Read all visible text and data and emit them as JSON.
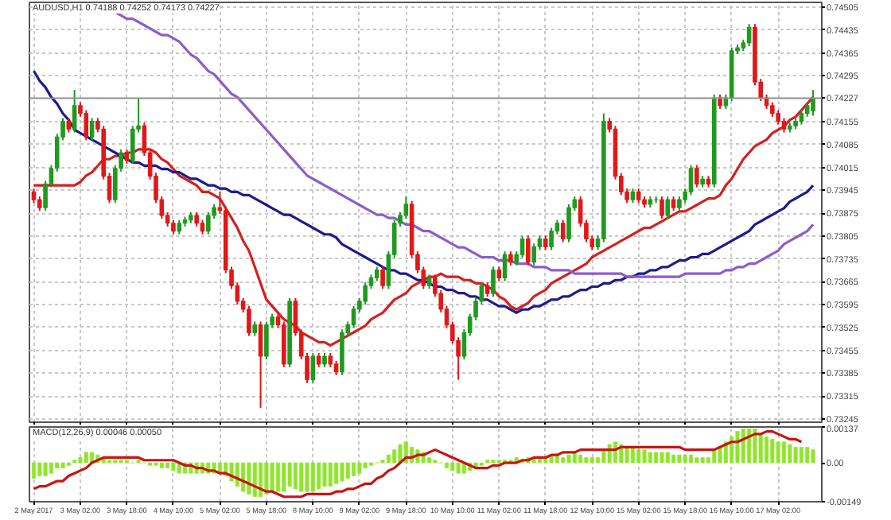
{
  "chart_data": [
    {
      "type": "candlestick",
      "title": "AUDUSD,H1 0.74188 0.74252 0.74173 0.74227",
      "categories": [
        null,
        null,
        null,
        null,
        null,
        null,
        null,
        null,
        null,
        null,
        null,
        null,
        null,
        null,
        null,
        null,
        null,
        null,
        null,
        null,
        null,
        null,
        null,
        null,
        null,
        null,
        null,
        null,
        null,
        null,
        null,
        null,
        null,
        null,
        null,
        null,
        null,
        null,
        null,
        null,
        null,
        null,
        null,
        null,
        null,
        null,
        null,
        null,
        null,
        null,
        null,
        null,
        null,
        null,
        null,
        null,
        null,
        null,
        null,
        null,
        null,
        null,
        null,
        null,
        null,
        null,
        null,
        null,
        null,
        null,
        null,
        null,
        null,
        null,
        null,
        null,
        null,
        null,
        null,
        null,
        null,
        null,
        null,
        null,
        null,
        null,
        null,
        null,
        null,
        null,
        null,
        null,
        null,
        null,
        null,
        null,
        null,
        null,
        null,
        null,
        null,
        null,
        null,
        null,
        null,
        null,
        null,
        null,
        null,
        null,
        null,
        null,
        null,
        null,
        null,
        null,
        null,
        null,
        null,
        null,
        null,
        null,
        null,
        null,
        null,
        null,
        null,
        null,
        null,
        null,
        null,
        null,
        null,
        null,
        null
      ],
      "ohlc": [
        [
          0.7394,
          0.7395,
          0.73906,
          0.73916
        ],
        [
          0.73916,
          0.73926,
          0.73882,
          0.73892
        ],
        [
          0.73892,
          0.73974,
          0.73882,
          0.73964
        ],
        [
          0.73964,
          0.74022,
          0.73954,
          0.74012
        ],
        [
          0.74012,
          0.74118,
          0.74002,
          0.74108
        ],
        [
          0.74108,
          0.74166,
          0.74098,
          0.74156
        ],
        [
          0.74156,
          0.74166,
          0.74122,
          0.74132
        ],
        [
          0.74132,
          0.74252,
          0.74122,
          0.74204
        ],
        [
          0.74204,
          0.74214,
          0.7417,
          0.7418
        ],
        [
          0.7418,
          0.7419,
          0.74098,
          0.74108
        ],
        [
          0.74108,
          0.74166,
          0.74098,
          0.74156
        ],
        [
          0.74156,
          0.74166,
          0.74122,
          0.74132
        ],
        [
          0.74132,
          0.74142,
          0.73978,
          0.73988
        ],
        [
          0.73988,
          0.73998,
          0.73906,
          0.73916
        ],
        [
          0.73916,
          0.74022,
          0.73906,
          0.74012
        ],
        [
          0.74012,
          0.7407,
          0.74002,
          0.7406
        ],
        [
          0.7406,
          0.7407,
          0.74026,
          0.74036
        ],
        [
          0.74036,
          0.74142,
          0.74026,
          0.74132
        ],
        [
          0.74132,
          0.74228,
          0.74122,
          0.74142
        ],
        [
          0.74142,
          0.74152,
          0.7405,
          0.7406
        ],
        [
          0.7406,
          0.7407,
          0.73978,
          0.73988
        ],
        [
          0.73988,
          0.73998,
          0.73906,
          0.73916
        ],
        [
          0.73916,
          0.73926,
          0.73858,
          0.73868
        ],
        [
          0.73868,
          0.73878,
          0.73834,
          0.73844
        ],
        [
          0.73844,
          0.73854,
          0.7381,
          0.7382
        ],
        [
          0.7382,
          0.73854,
          0.7381,
          0.73844
        ],
        [
          0.73844,
          0.73864,
          0.73834,
          0.73854
        ],
        [
          0.73854,
          0.73878,
          0.73844,
          0.73868
        ],
        [
          0.73868,
          0.73878,
          0.73834,
          0.73844
        ],
        [
          0.73844,
          0.73854,
          0.7381,
          0.7382
        ],
        [
          0.7382,
          0.73878,
          0.7381,
          0.73868
        ],
        [
          0.73868,
          0.73902,
          0.73858,
          0.73892
        ],
        [
          0.73892,
          0.7394,
          0.73873,
          0.73883
        ],
        [
          0.73883,
          0.73893,
          0.73691,
          0.73701
        ],
        [
          0.73701,
          0.73711,
          0.73643,
          0.73653
        ],
        [
          0.73653,
          0.73663,
          0.73595,
          0.73605
        ],
        [
          0.73605,
          0.73615,
          0.73571,
          0.73581
        ],
        [
          0.73581,
          0.73591,
          0.73499,
          0.73509
        ],
        [
          0.73509,
          0.73543,
          0.73499,
          0.73533
        ],
        [
          0.73533,
          0.73543,
          0.73279,
          0.73437
        ],
        [
          0.73437,
          0.73543,
          0.73427,
          0.73533
        ],
        [
          0.73533,
          0.73567,
          0.73523,
          0.73557
        ],
        [
          0.73557,
          0.73567,
          0.73523,
          0.73533
        ],
        [
          0.73533,
          0.73543,
          0.73403,
          0.73413
        ],
        [
          0.73413,
          0.73615,
          0.73403,
          0.73605
        ],
        [
          0.73605,
          0.73615,
          0.73499,
          0.73509
        ],
        [
          0.73509,
          0.73519,
          0.73427,
          0.73437
        ],
        [
          0.73437,
          0.73447,
          0.73355,
          0.73365
        ],
        [
          0.73365,
          0.73447,
          0.73355,
          0.73437
        ],
        [
          0.73437,
          0.73447,
          0.73403,
          0.73413
        ],
        [
          0.73413,
          0.73447,
          0.73403,
          0.73437
        ],
        [
          0.73437,
          0.73447,
          0.73403,
          0.73413
        ],
        [
          0.73413,
          0.73423,
          0.73379,
          0.73389
        ],
        [
          0.73389,
          0.73519,
          0.73379,
          0.73509
        ],
        [
          0.73509,
          0.73543,
          0.73499,
          0.73533
        ],
        [
          0.73533,
          0.73591,
          0.73523,
          0.73581
        ],
        [
          0.73581,
          0.73615,
          0.73571,
          0.73605
        ],
        [
          0.73605,
          0.73663,
          0.73595,
          0.73653
        ],
        [
          0.73653,
          0.73687,
          0.73643,
          0.73677
        ],
        [
          0.73677,
          0.73711,
          0.73667,
          0.73701
        ],
        [
          0.73701,
          0.73711,
          0.73643,
          0.73653
        ],
        [
          0.73653,
          0.73758,
          0.73643,
          0.73748
        ],
        [
          0.73748,
          0.73854,
          0.73738,
          0.73844
        ],
        [
          0.73844,
          0.73878,
          0.73834,
          0.73868
        ],
        [
          0.73868,
          0.73926,
          0.73858,
          0.73902
        ],
        [
          0.73902,
          0.73912,
          0.73738,
          0.73748
        ],
        [
          0.73748,
          0.73758,
          0.73691,
          0.73701
        ],
        [
          0.73701,
          0.73711,
          0.73643,
          0.73653
        ],
        [
          0.73653,
          0.73687,
          0.73643,
          0.73677
        ],
        [
          0.73677,
          0.73687,
          0.73619,
          0.73629
        ],
        [
          0.73629,
          0.73639,
          0.73571,
          0.73581
        ],
        [
          0.73581,
          0.73591,
          0.73523,
          0.73533
        ],
        [
          0.73533,
          0.73543,
          0.73475,
          0.73485
        ],
        [
          0.73485,
          0.73495,
          0.73365,
          0.73437
        ],
        [
          0.73437,
          0.73519,
          0.73427,
          0.73509
        ],
        [
          0.73509,
          0.73567,
          0.73499,
          0.73557
        ],
        [
          0.73557,
          0.73615,
          0.73547,
          0.73605
        ],
        [
          0.73605,
          0.73663,
          0.73595,
          0.73653
        ],
        [
          0.73653,
          0.73663,
          0.73619,
          0.73629
        ],
        [
          0.73629,
          0.73711,
          0.73619,
          0.73701
        ],
        [
          0.73701,
          0.73711,
          0.73667,
          0.73677
        ],
        [
          0.73677,
          0.73758,
          0.73667,
          0.73748
        ],
        [
          0.73748,
          0.73758,
          0.73715,
          0.73725
        ],
        [
          0.73725,
          0.73758,
          0.73715,
          0.73748
        ],
        [
          0.73748,
          0.73806,
          0.73738,
          0.73796
        ],
        [
          0.73796,
          0.73806,
          0.73715,
          0.73725
        ],
        [
          0.73725,
          0.73782,
          0.73715,
          0.73772
        ],
        [
          0.73772,
          0.73806,
          0.73762,
          0.73796
        ],
        [
          0.73796,
          0.73806,
          0.73762,
          0.73772
        ],
        [
          0.73772,
          0.7383,
          0.73762,
          0.7382
        ],
        [
          0.7382,
          0.73854,
          0.7381,
          0.73844
        ],
        [
          0.73844,
          0.73854,
          0.73786,
          0.73796
        ],
        [
          0.73796,
          0.73902,
          0.73786,
          0.73892
        ],
        [
          0.73892,
          0.73926,
          0.73882,
          0.73916
        ],
        [
          0.73916,
          0.73926,
          0.73834,
          0.73844
        ],
        [
          0.73844,
          0.73854,
          0.73786,
          0.73796
        ],
        [
          0.73796,
          0.73806,
          0.73762,
          0.73772
        ],
        [
          0.73772,
          0.73806,
          0.73762,
          0.73796
        ],
        [
          0.73796,
          0.7418,
          0.73786,
          0.74156
        ],
        [
          0.74156,
          0.74166,
          0.74122,
          0.74132
        ],
        [
          0.74132,
          0.74142,
          0.73978,
          0.73988
        ],
        [
          0.73988,
          0.73998,
          0.7393,
          0.7394
        ],
        [
          0.7394,
          0.7395,
          0.73906,
          0.73916
        ],
        [
          0.73916,
          0.7395,
          0.73906,
          0.7394
        ],
        [
          0.7394,
          0.7395,
          0.73906,
          0.73916
        ],
        [
          0.73916,
          0.73926,
          0.73892,
          0.73902
        ],
        [
          0.73902,
          0.73926,
          0.73892,
          0.73916
        ],
        [
          0.73916,
          0.73926,
          0.73906,
          0.73916
        ],
        [
          0.73916,
          0.73926,
          0.73858,
          0.73868
        ],
        [
          0.73868,
          0.73926,
          0.73858,
          0.73916
        ],
        [
          0.73916,
          0.73926,
          0.73882,
          0.73892
        ],
        [
          0.73892,
          0.73926,
          0.73882,
          0.73916
        ],
        [
          0.73916,
          0.7395,
          0.73906,
          0.7394
        ],
        [
          0.7394,
          0.74022,
          0.7393,
          0.74012
        ],
        [
          0.74012,
          0.74022,
          0.73954,
          0.73964
        ],
        [
          0.73964,
          0.73989,
          0.73954,
          0.73979
        ],
        [
          0.73979,
          0.73989,
          0.73954,
          0.73964
        ],
        [
          0.73964,
          0.74238,
          0.73954,
          0.74228
        ],
        [
          0.74228,
          0.74238,
          0.74194,
          0.74204
        ],
        [
          0.74204,
          0.74238,
          0.74194,
          0.74228
        ],
        [
          0.74228,
          0.74382,
          0.74218,
          0.74372
        ],
        [
          0.74372,
          0.74391,
          0.74362,
          0.74381
        ],
        [
          0.74381,
          0.74406,
          0.74371,
          0.74396
        ],
        [
          0.74396,
          0.74454,
          0.74386,
          0.74444
        ],
        [
          0.74444,
          0.74454,
          0.74266,
          0.74276
        ],
        [
          0.74276,
          0.74286,
          0.74218,
          0.74228
        ],
        [
          0.74228,
          0.74238,
          0.74194,
          0.74204
        ],
        [
          0.74204,
          0.74214,
          0.7417,
          0.7418
        ],
        [
          0.7418,
          0.7419,
          0.74146,
          0.74156
        ],
        [
          0.74156,
          0.74166,
          0.74122,
          0.74132
        ],
        [
          0.74132,
          0.74152,
          0.74122,
          0.74142
        ],
        [
          0.74142,
          0.74166,
          0.74132,
          0.74156
        ],
        [
          0.74156,
          0.7419,
          0.74146,
          0.7418
        ],
        [
          0.7418,
          0.74214,
          0.7417,
          0.74204
        ],
        [
          0.74188,
          0.74252,
          0.74173,
          0.74227
        ]
      ],
      "colors": [
        "#e01818",
        "#e01818",
        "#1f9a1f",
        "#1f9a1f",
        "#1f9a1f",
        "#1f9a1f",
        "#e01818",
        "#1f9a1f",
        "#e01818",
        "#e01818",
        "#1f9a1f",
        "#e01818",
        "#e01818",
        "#e01818",
        "#1f9a1f",
        "#1f9a1f",
        "#e01818",
        "#1f9a1f",
        "#1f9a1f",
        "#e01818",
        "#e01818",
        "#e01818",
        "#e01818",
        "#e01818",
        "#e01818",
        "#1f9a1f",
        "#1f9a1f",
        "#1f9a1f",
        "#e01818",
        "#e01818",
        "#1f9a1f",
        "#1f9a1f",
        "#e01818",
        "#e01818",
        "#e01818",
        "#e01818",
        "#e01818",
        "#e01818",
        "#1f9a1f",
        "#e01818",
        "#1f9a1f",
        "#1f9a1f",
        "#e01818",
        "#e01818",
        "#1f9a1f",
        "#e01818",
        "#e01818",
        "#e01818",
        "#1f9a1f",
        "#e01818",
        "#1f9a1f",
        "#e01818",
        "#e01818",
        "#1f9a1f",
        "#1f9a1f",
        "#1f9a1f",
        "#1f9a1f",
        "#1f9a1f",
        "#1f9a1f",
        "#1f9a1f",
        "#e01818",
        "#1f9a1f",
        "#1f9a1f",
        "#1f9a1f",
        "#1f9a1f",
        "#e01818",
        "#e01818",
        "#e01818",
        "#1f9a1f",
        "#e01818",
        "#e01818",
        "#e01818",
        "#e01818",
        "#e01818",
        "#1f9a1f",
        "#1f9a1f",
        "#1f9a1f",
        "#1f9a1f",
        "#e01818",
        "#1f9a1f",
        "#e01818",
        "#1f9a1f",
        "#e01818",
        "#1f9a1f",
        "#1f9a1f",
        "#e01818",
        "#1f9a1f",
        "#1f9a1f",
        "#e01818",
        "#1f9a1f",
        "#1f9a1f",
        "#e01818",
        "#1f9a1f",
        "#1f9a1f",
        "#e01818",
        "#e01818",
        "#e01818",
        "#1f9a1f",
        "#1f9a1f",
        "#e01818",
        "#e01818",
        "#e01818",
        "#e01818",
        "#1f9a1f",
        "#e01818",
        "#e01818",
        "#1f9a1f",
        "#1f9a1f",
        "#e01818",
        "#1f9a1f",
        "#e01818",
        "#1f9a1f",
        "#1f9a1f",
        "#1f9a1f",
        "#e01818",
        "#1f9a1f",
        "#e01818",
        "#1f9a1f",
        "#e01818",
        "#1f9a1f",
        "#1f9a1f",
        "#1f9a1f",
        "#1f9a1f",
        "#1f9a1f",
        "#e01818",
        "#e01818",
        "#e01818",
        "#e01818",
        "#e01818",
        "#e01818",
        "#1f9a1f",
        "#1f9a1f",
        "#1f9a1f",
        "#1f9a1f",
        "#1f9a1f"
      ],
      "series": [
        {
          "type": "line",
          "color": "#d42020",
          "values": [
            0.7396,
            0.7396,
            0.7396,
            0.7396,
            0.7396,
            0.7396,
            0.7396,
            0.7396,
            0.7397,
            0.7399,
            0.74,
            0.7402,
            0.7404,
            0.7404,
            0.7405,
            0.7405,
            0.7406,
            0.7406,
            0.7407,
            0.7407,
            0.7407,
            0.7406,
            0.7404,
            0.7403,
            0.7401,
            0.7399,
            0.7398,
            0.7397,
            0.7396,
            0.7394,
            0.7394,
            0.7393,
            0.7392,
            0.7389,
            0.7386,
            0.7383,
            0.7379,
            0.7376,
            0.7371,
            0.7366,
            0.7361,
            0.7359,
            0.7357,
            0.7355,
            0.7354,
            0.7353,
            0.7351,
            0.735,
            0.7349,
            0.7348,
            0.7348,
            0.7347,
            0.7348,
            0.7349,
            0.735,
            0.7351,
            0.7352,
            0.7353,
            0.7355,
            0.7356,
            0.7357,
            0.7359,
            0.7361,
            0.7362,
            0.7363,
            0.7365,
            0.7366,
            0.7367,
            0.7368,
            0.7368,
            0.7369,
            0.7368,
            0.7368,
            0.7368,
            0.7367,
            0.7367,
            0.7366,
            0.7366,
            0.7365,
            0.7364,
            0.7362,
            0.7361,
            0.7359,
            0.7358,
            0.7359,
            0.736,
            0.7362,
            0.7363,
            0.7364,
            0.7366,
            0.7367,
            0.7368,
            0.7369,
            0.737,
            0.7371,
            0.7372,
            0.7374,
            0.7375,
            0.7376,
            0.7377,
            0.7378,
            0.7379,
            0.738,
            0.7381,
            0.7382,
            0.7383,
            0.7383,
            0.7384,
            0.7385,
            0.7386,
            0.7387,
            0.7388,
            0.7388,
            0.7389,
            0.739,
            0.7391,
            0.7392,
            0.7392,
            0.7393,
            0.7396,
            0.7398,
            0.7401,
            0.7404,
            0.7406,
            0.7408,
            0.7409,
            0.741,
            0.7412,
            0.7413,
            0.7414,
            0.7416,
            0.7417,
            0.7419,
            0.7421,
            0.7423
          ]
        },
        {
          "type": "line",
          "color": "#1c1c8c",
          "values": [
            0.7431,
            0.7428,
            0.7426,
            0.7423,
            0.7421,
            0.7418,
            0.7416,
            0.7413,
            0.7412,
            0.7411,
            0.741,
            0.7409,
            0.7408,
            0.7407,
            0.7406,
            0.7405,
            0.7404,
            0.7403,
            0.7403,
            0.7402,
            0.7402,
            0.7402,
            0.7401,
            0.7401,
            0.74,
            0.74,
            0.7399,
            0.7398,
            0.7398,
            0.7397,
            0.7396,
            0.7396,
            0.7395,
            0.7395,
            0.7394,
            0.7394,
            0.7393,
            0.7393,
            0.7392,
            0.7391,
            0.739,
            0.7389,
            0.7388,
            0.7387,
            0.7387,
            0.7386,
            0.7385,
            0.7384,
            0.7383,
            0.7382,
            0.7381,
            0.7381,
            0.738,
            0.7378,
            0.7377,
            0.7376,
            0.7375,
            0.7374,
            0.7373,
            0.7372,
            0.7371,
            0.737,
            0.737,
            0.7369,
            0.7369,
            0.7368,
            0.7367,
            0.7367,
            0.7366,
            0.7365,
            0.7365,
            0.7364,
            0.7364,
            0.7363,
            0.7363,
            0.7362,
            0.7362,
            0.7361,
            0.7361,
            0.736,
            0.7359,
            0.7359,
            0.7358,
            0.7357,
            0.7358,
            0.7358,
            0.7359,
            0.7359,
            0.736,
            0.7361,
            0.7361,
            0.7362,
            0.7362,
            0.7363,
            0.7364,
            0.7364,
            0.7365,
            0.7365,
            0.7366,
            0.7366,
            0.7367,
            0.7367,
            0.7368,
            0.7368,
            0.7369,
            0.7369,
            0.737,
            0.737,
            0.7371,
            0.7371,
            0.7372,
            0.7373,
            0.7373,
            0.7374,
            0.7374,
            0.7375,
            0.7375,
            0.7376,
            0.7377,
            0.7378,
            0.7379,
            0.738,
            0.7381,
            0.7382,
            0.7384,
            0.7385,
            0.7386,
            0.7387,
            0.7388,
            0.7389,
            0.7391,
            0.7392,
            0.7393,
            0.7394,
            0.7396
          ]
        },
        {
          "type": "line",
          "color": "#8c5ccc",
          "values": [
            null,
            null,
            null,
            null,
            null,
            null,
            null,
            null,
            null,
            null,
            null,
            null,
            null,
            0.745,
            0.7449,
            0.7448,
            0.7447,
            0.7447,
            0.7446,
            0.7445,
            0.7444,
            0.7443,
            0.7442,
            0.7442,
            0.7441,
            0.744,
            0.7438,
            0.7436,
            0.7435,
            0.7433,
            0.7431,
            0.743,
            0.7428,
            0.7426,
            0.7424,
            0.7423,
            0.7421,
            0.7419,
            0.7417,
            0.7415,
            0.7413,
            0.7411,
            0.7409,
            0.7407,
            0.7405,
            0.7403,
            0.7401,
            0.7399,
            0.7398,
            0.7397,
            0.7396,
            0.7395,
            0.7394,
            0.7393,
            0.7392,
            0.7391,
            0.739,
            0.7389,
            0.7388,
            0.7387,
            0.7387,
            0.7386,
            0.7386,
            0.7385,
            0.7384,
            0.7384,
            0.7383,
            0.7382,
            0.7382,
            0.7381,
            0.738,
            0.7379,
            0.7378,
            0.7377,
            0.7377,
            0.7376,
            0.7375,
            0.7374,
            0.7374,
            0.7374,
            0.7373,
            0.7373,
            0.7373,
            0.7372,
            0.7372,
            0.7372,
            0.7371,
            0.7371,
            0.7371,
            0.737,
            0.737,
            0.737,
            0.737,
            0.7369,
            0.7369,
            0.7369,
            0.7369,
            0.7369,
            0.7369,
            0.7369,
            0.7369,
            0.7369,
            0.7368,
            0.7368,
            0.7368,
            0.7368,
            0.7368,
            0.7368,
            0.7368,
            0.7368,
            0.7368,
            0.7368,
            0.7369,
            0.7369,
            0.7369,
            0.7369,
            0.7369,
            0.7369,
            0.7369,
            0.737,
            0.737,
            0.7371,
            0.7371,
            0.7372,
            0.7372,
            0.7373,
            0.7374,
            0.7375,
            0.7376,
            0.7378,
            0.7379,
            0.738,
            0.7381,
            0.7382,
            0.7384
          ]
        }
      ],
      "ylim": [
        0.73235,
        0.7452
      ],
      "yticks": [
        0.73245,
        0.73315,
        0.73385,
        0.73455,
        0.73525,
        0.73595,
        0.73665,
        0.73735,
        0.73805,
        0.73875,
        0.73945,
        0.74015,
        0.74085,
        0.74155,
        0.74295,
        0.74365,
        0.74435,
        0.74505
      ],
      "ref_lines": [
        {
          "axis": "y",
          "value": 0.74227,
          "label": "0.74227",
          "color": "#909090"
        }
      ],
      "grid": true
    },
    {
      "type": "bar",
      "title": "MACD(12,26,9) 0.00046 0.00050",
      "categories": [
        "2 May 2017",
        null,
        null,
        null,
        null,
        null,
        null,
        null,
        "3 May 02:00",
        null,
        null,
        null,
        null,
        null,
        null,
        null,
        "3 May 18:00",
        null,
        null,
        null,
        null,
        null,
        null,
        null,
        "4 May 10:00",
        null,
        null,
        null,
        null,
        null,
        null,
        null,
        "5 May 02:00",
        null,
        null,
        null,
        null,
        null,
        null,
        null,
        "5 May 18:00",
        null,
        null,
        null,
        null,
        null,
        null,
        null,
        "8 May 10:00",
        null,
        null,
        null,
        null,
        null,
        null,
        null,
        "9 May 02:00",
        null,
        null,
        null,
        null,
        null,
        null,
        null,
        "9 May 18:00",
        null,
        null,
        null,
        null,
        null,
        null,
        null,
        "10 May 10:00",
        null,
        null,
        null,
        null,
        null,
        null,
        null,
        "11 May 02:00",
        null,
        null,
        null,
        null,
        null,
        null,
        null,
        "11 May 18:00",
        null,
        null,
        null,
        null,
        null,
        null,
        null,
        "12 May 10:00",
        null,
        null,
        null,
        null,
        null,
        null,
        null,
        "15 May 02:00",
        null,
        null,
        null,
        null,
        null,
        null,
        null,
        "15 May 18:00",
        null,
        null,
        null,
        null,
        null,
        null,
        null,
        "16 May 10:00",
        null,
        null,
        null,
        null,
        null,
        null,
        null,
        "17 May 02:00",
        null,
        null,
        null,
        null,
        null,
        null
      ],
      "series": [
        {
          "type": "bar",
          "color": "#8ee62a",
          "values": [
            -0.0006,
            -0.0005,
            -0.0005,
            -0.0004,
            -0.0002,
            -0.0002,
            -0.0001,
            0.0001,
            0.0002,
            0.0004,
            0.0004,
            0.0003,
            0.0002,
            0.0001,
            0.0001,
            0.0001,
            0.0001,
            0,
            0.0001,
            0,
            -0.0001,
            -0.0001,
            -0.0002,
            -0.0002,
            -0.0003,
            -0.0004,
            -0.0004,
            -0.0004,
            -0.0004,
            -0.0004,
            -0.0004,
            -0.0004,
            -0.0004,
            -0.0005,
            -0.0007,
            -0.0009,
            -0.0011,
            -0.0012,
            -0.0013,
            -0.0013,
            -0.0012,
            -0.0011,
            -0.0011,
            -0.0011,
            -0.0009,
            -0.001,
            -0.0011,
            -0.0011,
            -0.0011,
            -0.001,
            -0.0009,
            -0.0009,
            -0.0008,
            -0.0007,
            -0.0006,
            -0.0005,
            -0.0004,
            -0.0002,
            -0.0001,
            0,
            0.0001,
            0.0003,
            0.0005,
            0.0007,
            0.0008,
            0.0006,
            0.0005,
            0.0004,
            0.0002,
            0.0001,
            0,
            -0.0002,
            -0.0003,
            -0.0004,
            -0.0004,
            -0.0003,
            -0.0002,
            -0.0001,
            0.0001,
            0.0001,
            0.0001,
            0.0001,
            0.0001,
            0.0002,
            0.0001,
            0.0002,
            0.0002,
            0.0002,
            0.0002,
            0.0003,
            0.0003,
            0.0002,
            0.0003,
            0.0004,
            0.0003,
            0.0002,
            0.0002,
            0.0002,
            0.0005,
            0.0007,
            0.0008,
            0.0007,
            0.0006,
            0.0006,
            0.0005,
            0.0005,
            0.0004,
            0.0004,
            0.0004,
            0.0004,
            0.0003,
            0.0003,
            0.0003,
            0.0003,
            0.0002,
            0.0002,
            0.0002,
            0.0005,
            0.0006,
            0.0008,
            0.001,
            0.0012,
            0.0013,
            0.0013,
            0.0013,
            0.0011,
            0.001,
            0.0009,
            0.0008,
            0.0008,
            0.0007,
            0.0006,
            0.0006,
            0.0006,
            0.0005
          ]
        },
        {
          "type": "line",
          "color": "#c81414",
          "values": [
            -0.001,
            -0.0009,
            -0.0009,
            -0.0008,
            -0.0007,
            -0.0007,
            -0.0005,
            -0.0004,
            -0.0003,
            -0.0002,
            0,
            0.0001,
            0.0002,
            0.0002,
            0.0002,
            0.0002,
            0.0002,
            0.0002,
            0.0002,
            0.0001,
            0.0001,
            0.0001,
            0.0001,
            0.0001,
            0.0001,
            0,
            -0.0001,
            -0.0001,
            -0.0002,
            -0.0002,
            -0.0003,
            -0.0003,
            -0.0004,
            -0.0004,
            -0.0005,
            -0.0006,
            -0.0007,
            -0.0008,
            -0.0009,
            -0.001,
            -0.0011,
            -0.0011,
            -0.0012,
            -0.0013,
            -0.0013,
            -0.0013,
            -0.0013,
            -0.0012,
            -0.0012,
            -0.0012,
            -0.0012,
            -0.0012,
            -0.0011,
            -0.0011,
            -0.001,
            -0.001,
            -0.0009,
            -0.0008,
            -0.0008,
            -0.0006,
            -0.0005,
            -0.0003,
            -0.0002,
            0,
            0.0002,
            0.0002,
            0.0003,
            0.0003,
            0.0004,
            0.0005,
            0.0004,
            0.0003,
            0.0002,
            0.0001,
            0,
            -0.0001,
            -0.0002,
            -0.0002,
            -0.0002,
            -0.0001,
            -0.0001,
            0,
            0,
            0,
            0.0001,
            0.0001,
            0.0002,
            0.0002,
            0.0002,
            0.0003,
            0.0003,
            0.0004,
            0.0004,
            0.0004,
            0.0005,
            0.0005,
            0.0005,
            0.0005,
            0.0005,
            0.0005,
            0.0005,
            0.0006,
            0.0006,
            0.0006,
            0.0006,
            0.0006,
            0.0006,
            0.0006,
            0.0006,
            0.0006,
            0.0006,
            0.0006,
            0.0005,
            0.0005,
            0.0005,
            0.0005,
            0.0005,
            0.0005,
            0.0006,
            0.0007,
            0.0008,
            0.0008,
            0.0009,
            0.001,
            0.0011,
            0.0011,
            0.0012,
            0.0012,
            0.0011,
            0.001,
            0.0009,
            0.0009,
            0.0008,
            null,
            null
          ]
        }
      ],
      "ylim": [
        -0.00149,
        0.00137
      ],
      "yticks": [
        -0.00149,
        {
          "value": 0,
          "label": "0.00"
        },
        0.00137
      ],
      "grid": "x"
    }
  ]
}
